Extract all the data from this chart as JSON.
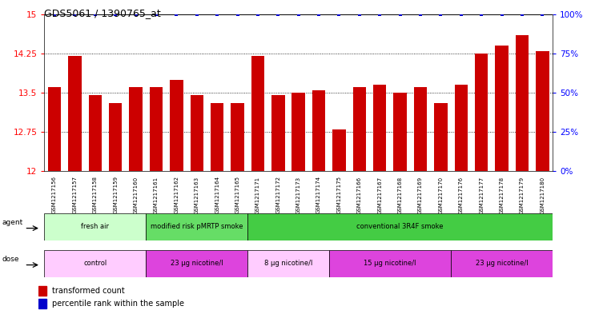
{
  "title": "GDS5061 / 1390765_at",
  "samples": [
    "GSM1217156",
    "GSM1217157",
    "GSM1217158",
    "GSM1217159",
    "GSM1217160",
    "GSM1217161",
    "GSM1217162",
    "GSM1217163",
    "GSM1217164",
    "GSM1217165",
    "GSM1217171",
    "GSM1217172",
    "GSM1217173",
    "GSM1217174",
    "GSM1217175",
    "GSM1217166",
    "GSM1217167",
    "GSM1217168",
    "GSM1217169",
    "GSM1217170",
    "GSM1217176",
    "GSM1217177",
    "GSM1217178",
    "GSM1217179",
    "GSM1217180"
  ],
  "bar_values": [
    13.6,
    14.2,
    13.45,
    13.3,
    13.6,
    13.6,
    13.75,
    13.45,
    13.3,
    13.3,
    14.2,
    13.45,
    13.5,
    13.55,
    12.8,
    13.6,
    13.65,
    13.5,
    13.6,
    13.3,
    13.65,
    14.25,
    14.4,
    14.6,
    14.3
  ],
  "percentile_values": [
    100,
    100,
    100,
    100,
    100,
    100,
    100,
    100,
    100,
    100,
    100,
    100,
    100,
    100,
    100,
    100,
    100,
    100,
    100,
    100,
    100,
    100,
    100,
    100,
    100
  ],
  "ylim_left": [
    12,
    15
  ],
  "ylim_right": [
    0,
    100
  ],
  "yticks_left": [
    12,
    12.75,
    13.5,
    14.25,
    15
  ],
  "yticks_right": [
    0,
    25,
    50,
    75,
    100
  ],
  "bar_color": "#cc0000",
  "percentile_color": "#0000cc",
  "bg_color": "#ffffff",
  "agent_groups": [
    {
      "label": "fresh air",
      "start": 0,
      "end": 5,
      "color": "#ccffcc"
    },
    {
      "label": "modified risk pMRTP smoke",
      "start": 5,
      "end": 10,
      "color": "#66dd66"
    },
    {
      "label": "conventional 3R4F smoke",
      "start": 10,
      "end": 25,
      "color": "#44cc44"
    }
  ],
  "dose_groups": [
    {
      "label": "control",
      "start": 0,
      "end": 5,
      "color": "#ffccff"
    },
    {
      "label": "23 μg nicotine/l",
      "start": 5,
      "end": 10,
      "color": "#dd44dd"
    },
    {
      "label": "8 μg nicotine/l",
      "start": 10,
      "end": 14,
      "color": "#ffccff"
    },
    {
      "label": "15 μg nicotine/l",
      "start": 14,
      "end": 20,
      "color": "#dd44dd"
    },
    {
      "label": "23 μg nicotine/l",
      "start": 20,
      "end": 25,
      "color": "#dd44dd"
    }
  ]
}
